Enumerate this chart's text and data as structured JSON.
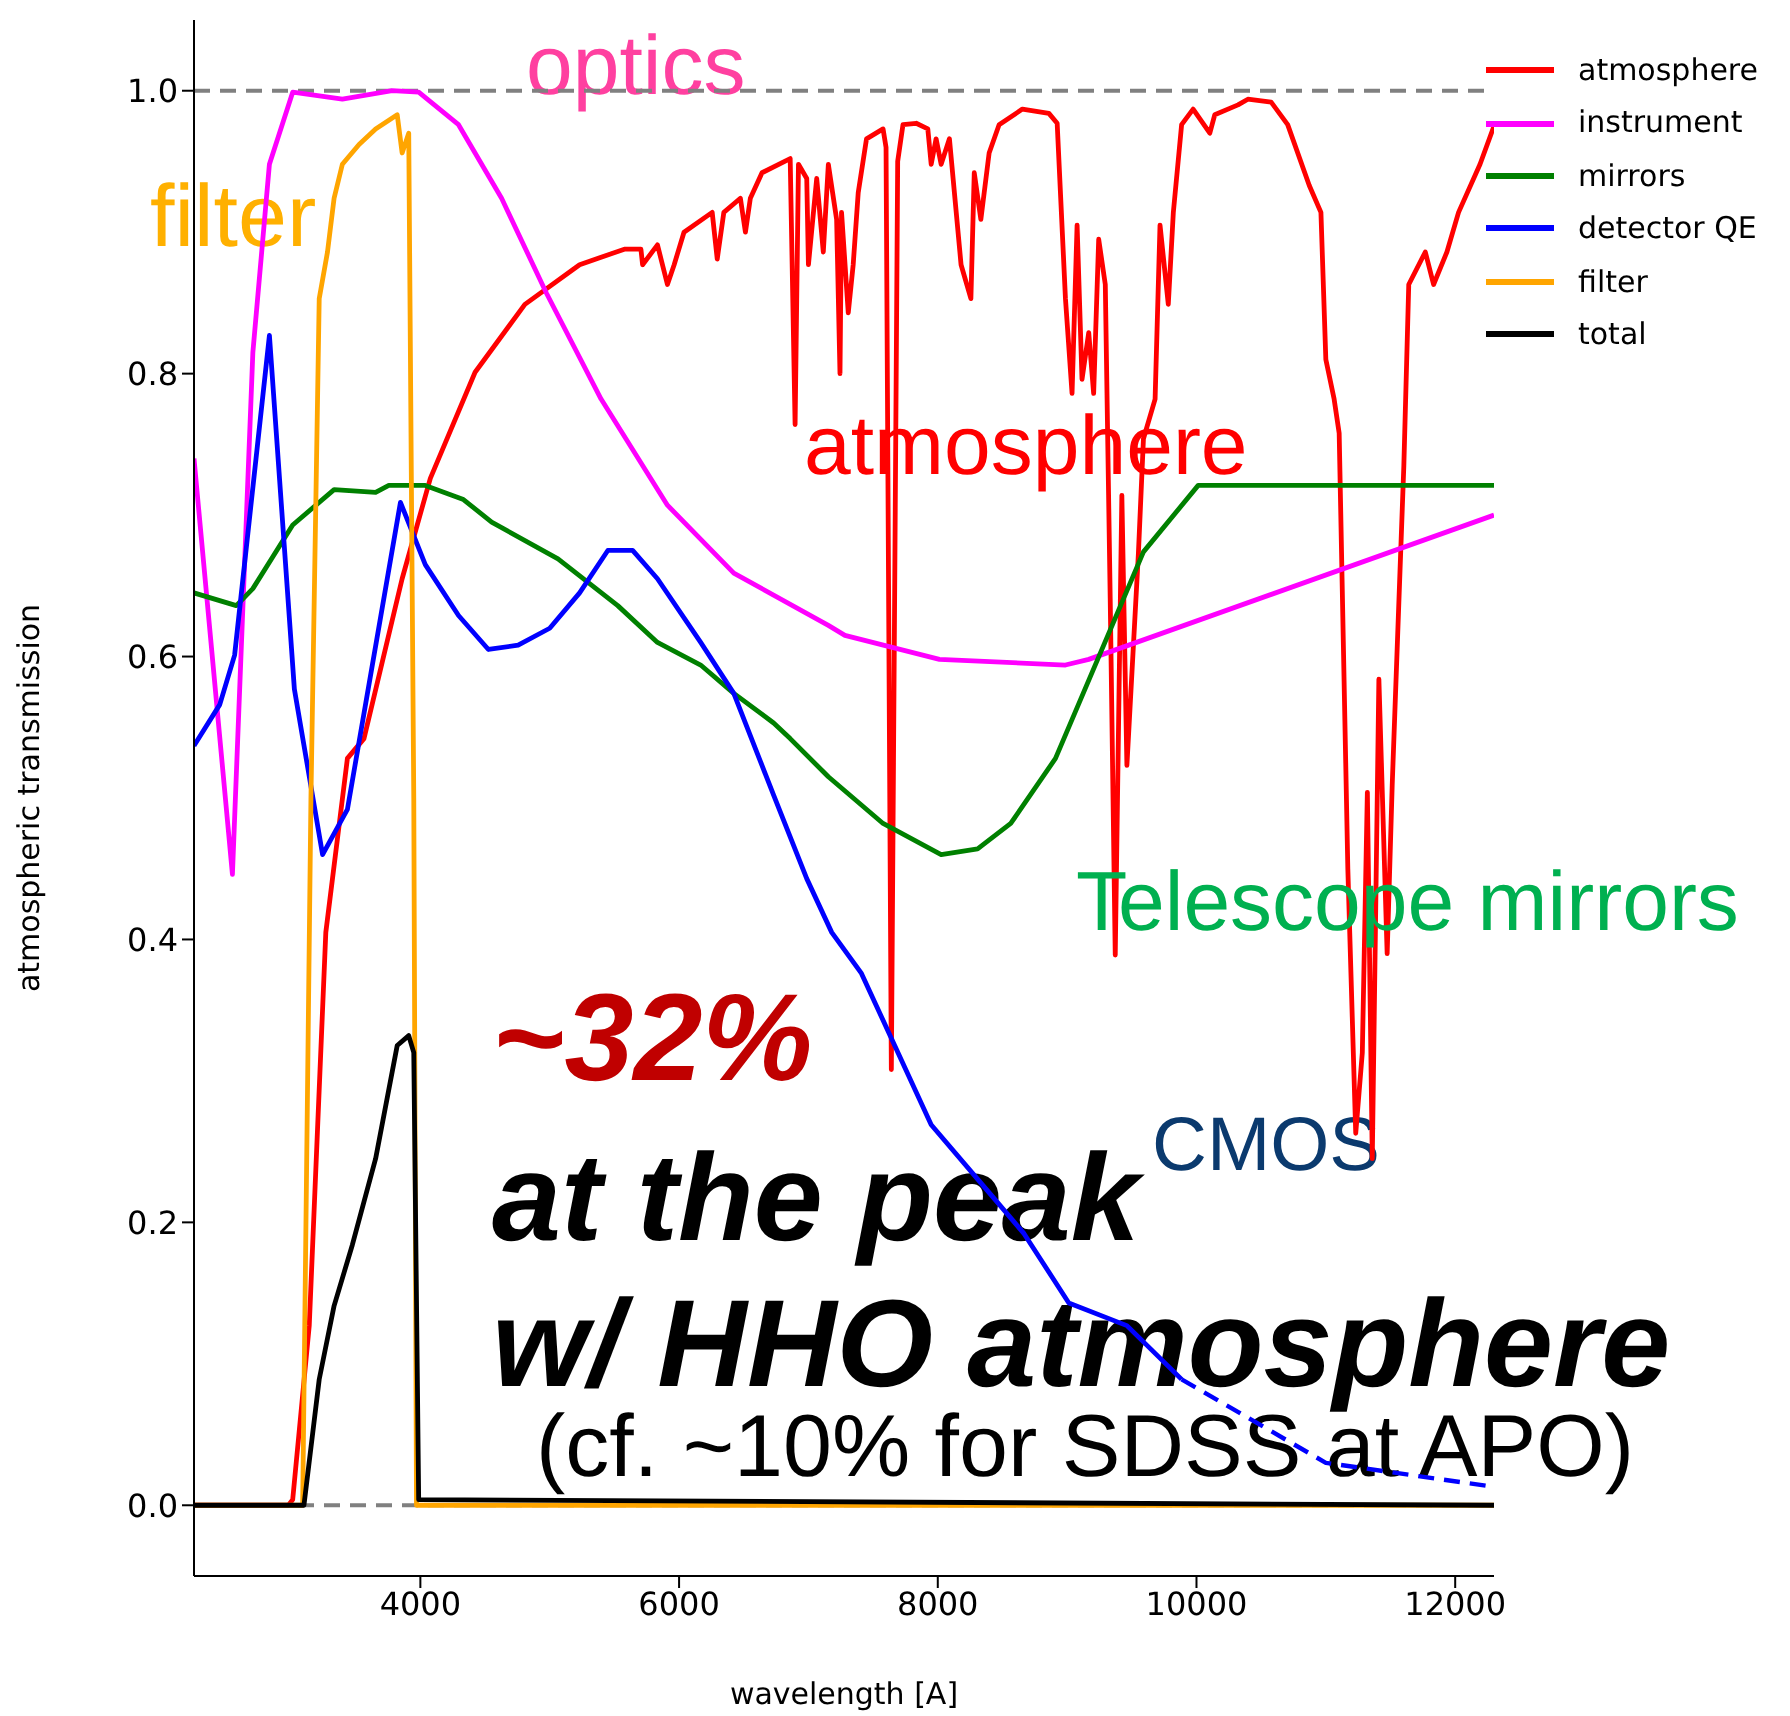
{
  "chart_data": {
    "type": "line",
    "xlabel": "wavelength [A]",
    "ylabel": "atmospheric transmission",
    "xlim": [
      2250,
      12300
    ],
    "xticks": [
      4000,
      6000,
      8000,
      10000,
      12000
    ],
    "ylim": [
      -0.05,
      1.05
    ],
    "yticks": [
      {
        "value": 0,
        "label": "0.0"
      },
      {
        "value": 0.2,
        "label": "0.2"
      },
      {
        "value": 0.4,
        "label": "0.4"
      },
      {
        "value": 0.6,
        "label": "0.6"
      },
      {
        "value": 0.8,
        "label": "0.8"
      },
      {
        "value": 1,
        "label": "1.0"
      }
    ],
    "legend": "top right",
    "grid": false,
    "ref_lines": [
      {
        "axis": "y",
        "value": 1,
        "color": "#808080",
        "line_style": "dashed"
      },
      {
        "axis": "y",
        "value": 0,
        "color": "#808080",
        "line_style": "dashed"
      }
    ],
    "series": [
      {
        "name": "atmosphere",
        "color": "#ff0000",
        "x": [
          2250,
          2980,
          3013,
          3141,
          3269,
          3436,
          3564,
          3859,
          4077,
          4423,
          4808,
          5231,
          5577,
          5705,
          5718,
          5833,
          5910,
          5962,
          6038,
          6256,
          6295,
          6346,
          6474,
          6513,
          6551,
          6641,
          6859,
          6897,
          6923,
          6987,
          7000,
          7064,
          7115,
          7154,
          7218,
          7244,
          7256,
          7308,
          7346,
          7385,
          7449,
          7577,
          7600,
          7641,
          7690,
          7731,
          7833,
          7923,
          7949,
          7987,
          8026,
          8090,
          8180,
          8256,
          8282,
          8333,
          8397,
          8474,
          8654,
          8859,
          8923,
          8987,
          9038,
          9077,
          9115,
          9167,
          9205,
          9244,
          9295,
          9333,
          9372,
          9423,
          9462,
          9551,
          9590,
          9680,
          9718,
          9782,
          9821,
          9885,
          9974,
          10103,
          10141,
          10321,
          10397,
          10577,
          10705,
          10872,
          10962,
          11000,
          11064,
          11103,
          11170,
          11231,
          11282,
          11321,
          11359,
          11410,
          11474,
          11513,
          11603,
          11641,
          11769,
          11833,
          11936,
          12026,
          12192,
          12300
        ],
        "values": [
          0,
          0,
          0.004,
          0.127,
          0.405,
          0.528,
          0.542,
          0.655,
          0.726,
          0.801,
          0.849,
          0.877,
          0.888,
          0.888,
          0.877,
          0.891,
          0.863,
          0.877,
          0.9,
          0.914,
          0.881,
          0.914,
          0.924,
          0.9,
          0.924,
          0.942,
          0.952,
          0.764,
          0.948,
          0.938,
          0.877,
          0.938,
          0.886,
          0.948,
          0.909,
          0.8,
          0.914,
          0.843,
          0.877,
          0.928,
          0.966,
          0.973,
          0.96,
          0.308,
          0.95,
          0.976,
          0.977,
          0.973,
          0.948,
          0.966,
          0.948,
          0.966,
          0.877,
          0.853,
          0.942,
          0.909,
          0.956,
          0.976,
          0.987,
          0.984,
          0.977,
          0.853,
          0.786,
          0.905,
          0.796,
          0.829,
          0.786,
          0.895,
          0.863,
          0.641,
          0.389,
          0.714,
          0.523,
          0.673,
          0.754,
          0.782,
          0.905,
          0.849,
          0.914,
          0.976,
          0.987,
          0.97,
          0.983,
          0.99,
          0.994,
          0.992,
          0.976,
          0.933,
          0.914,
          0.81,
          0.782,
          0.758,
          0.45,
          0.263,
          0.32,
          0.504,
          0.245,
          0.584,
          0.39,
          0.509,
          0.735,
          0.863,
          0.886,
          0.863,
          0.886,
          0.914,
          0.948,
          0.975
        ]
      },
      {
        "name": "instrument",
        "color": "#ff00ff",
        "x": [
          2250,
          2547,
          2705,
          2833,
          3013,
          3397,
          3782,
          3987,
          4295,
          4628,
          4974,
          5397,
          5910,
          6423,
          7154,
          7282,
          8013,
          8987,
          9167,
          12300
        ],
        "values": [
          0.74,
          0.446,
          0.815,
          0.948,
          0.999,
          0.994,
          1.0,
          0.999,
          0.976,
          0.924,
          0.857,
          0.782,
          0.707,
          0.659,
          0.622,
          0.615,
          0.598,
          0.594,
          0.598,
          0.7
        ]
      },
      {
        "name": "mirrors",
        "color": "#008000",
        "x": [
          2250,
          2577,
          2705,
          3013,
          3333,
          3654,
          3756,
          4038,
          4333,
          4551,
          5064,
          5526,
          5833,
          6167,
          6423,
          6731,
          6859,
          7154,
          7577,
          8026,
          8308,
          8564,
          8910,
          9590,
          10013,
          12300
        ],
        "values": [
          0.645,
          0.636,
          0.648,
          0.693,
          0.718,
          0.716,
          0.721,
          0.721,
          0.711,
          0.695,
          0.669,
          0.636,
          0.61,
          0.594,
          0.574,
          0.553,
          0.542,
          0.515,
          0.482,
          0.46,
          0.464,
          0.482,
          0.528,
          0.674,
          0.721,
          0.721
        ]
      },
      {
        "name": "detector QE",
        "color": "#0000ff",
        "x": [
          2250,
          2449,
          2564,
          2833,
          3026,
          3244,
          3436,
          3846,
          4038,
          4295,
          4526,
          4756,
          5000,
          5231,
          5449,
          5641,
          5833,
          6167,
          6423,
          6731,
          6987,
          7180,
          7410,
          7949,
          8397,
          8667,
          9013,
          9462,
          9885
        ],
        "values": [
          0.537,
          0.566,
          0.601,
          0.827,
          0.577,
          0.46,
          0.492,
          0.709,
          0.665,
          0.629,
          0.605,
          0.608,
          0.62,
          0.645,
          0.675,
          0.675,
          0.655,
          0.61,
          0.574,
          0.502,
          0.443,
          0.405,
          0.376,
          0.269,
          0.221,
          0.192,
          0.143,
          0.127,
          0.089
        ]
      },
      {
        "color": "#0000ff",
        "line_style": "dashed",
        "x": [
          9885,
          11000,
          12300
        ],
        "values": [
          0.089,
          0.03,
          0.013
        ]
      },
      {
        "name": "filter",
        "color": "#ffa500",
        "x": [
          2250,
          3090,
          3154,
          3218,
          3282,
          3333,
          3397,
          3526,
          3654,
          3821,
          3859,
          3910,
          3949,
          3970,
          12300
        ],
        "values": [
          0,
          0,
          0.5,
          0.853,
          0.886,
          0.924,
          0.948,
          0.962,
          0.973,
          0.983,
          0.956,
          0.97,
          0.5,
          0,
          0
        ]
      },
      {
        "name": "total",
        "color": "#000000",
        "x": [
          2250,
          3100,
          3218,
          3333,
          3474,
          3654,
          3821,
          3910,
          3949,
          3987,
          12300
        ],
        "values": [
          0,
          0,
          0.089,
          0.141,
          0.184,
          0.245,
          0.325,
          0.332,
          0.32,
          0.004,
          0
        ]
      }
    ],
    "annotations": [
      "optics",
      "filter",
      "atmosphere",
      "Telescope mirrors",
      "CMOS",
      "~32%",
      "at the peak",
      "w/ HHO atmosphere",
      "(cf. ~10% for SDSS at APO)"
    ]
  }
}
